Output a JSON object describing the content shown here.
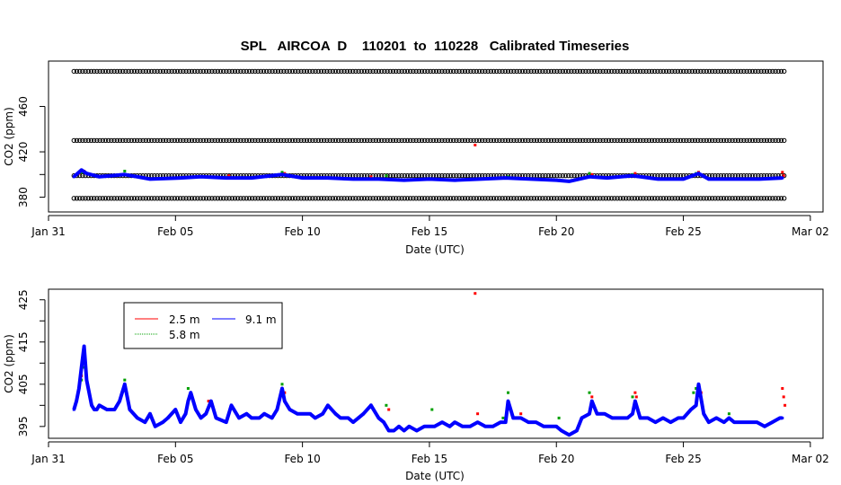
{
  "chart_data": [
    {
      "type": "scatter",
      "title": "SPL   AIRCOA  D    110201  to  110228   Calibrated Timeseries",
      "xlabel": "Date (UTC)",
      "ylabel": "CO2 (ppm)",
      "xlim": [
        0,
        30.5
      ],
      "ylim": [
        367,
        500
      ],
      "x_ticks": [
        {
          "x": 0,
          "label": "Jan 31"
        },
        {
          "x": 5,
          "label": "Feb 05"
        },
        {
          "x": 10,
          "label": "Feb 10"
        },
        {
          "x": 15,
          "label": "Feb 15"
        },
        {
          "x": 20,
          "label": "Feb 20"
        },
        {
          "x": 25,
          "label": "Feb 25"
        },
        {
          "x": 30,
          "label": "Mar 02"
        }
      ],
      "y_ticks": [
        380,
        400,
        420,
        460
      ],
      "y_tick_labels": [
        "380",
        "420",
        "460"
      ],
      "reference_levels": [
        {
          "name": "standard-1",
          "value": 379,
          "color": "#000000"
        },
        {
          "name": "standard-2",
          "value": 399,
          "color": "#000000"
        },
        {
          "name": "standard-3",
          "value": 430,
          "color": "#000000"
        },
        {
          "name": "standard-4",
          "value": 491,
          "color": "#000000"
        }
      ],
      "x_range_days": [
        1,
        29
      ],
      "series": [
        {
          "name": "2.5 m",
          "color": "#ff0000",
          "x": [
            1.2,
            1.4,
            3.0,
            7.1,
            9.3,
            12.7,
            16.8,
            18.6,
            21.4,
            23.1,
            25.6,
            28.9,
            28.95
          ],
          "y": [
            401,
            403,
            400,
            399,
            401,
            398,
            426,
            397,
            400,
            401,
            402,
            402,
            399
          ]
        },
        {
          "name": "5.8 m",
          "color": "#00a000",
          "x": [
            1.3,
            3.0,
            9.2,
            13.3,
            18.1,
            21.3,
            23.0,
            25.5
          ],
          "y": [
            402,
            403,
            402,
            399,
            398,
            401,
            400,
            401
          ]
        },
        {
          "name": "9.1 m",
          "color": "#0000ff",
          "x": [
            1.0,
            1.3,
            1.5,
            2.0,
            3.0,
            4.0,
            5.2,
            6.0,
            7.0,
            8.0,
            9.2,
            10.0,
            11.0,
            12.0,
            13.0,
            14.0,
            15.0,
            16.0,
            17.0,
            18.0,
            19.0,
            20.0,
            20.5,
            21.3,
            22.0,
            23.0,
            24.0,
            25.0,
            25.6,
            26.0,
            27.0,
            28.0,
            28.9
          ],
          "y": [
            398,
            404,
            401,
            398,
            400,
            396,
            397,
            398,
            397,
            397,
            400,
            397,
            397,
            396,
            396,
            395,
            396,
            395,
            396,
            397,
            396,
            395,
            394,
            398,
            397,
            399,
            396,
            396,
            401,
            396,
            396,
            396,
            397
          ]
        }
      ]
    },
    {
      "type": "scatter",
      "title": "",
      "xlabel": "Date (UTC)",
      "ylabel": "CO2 (ppm)",
      "xlim": [
        0,
        30.5
      ],
      "ylim": [
        392.2,
        427.5
      ],
      "x_ticks": [
        {
          "x": 0,
          "label": "Jan 31"
        },
        {
          "x": 5,
          "label": "Feb 05"
        },
        {
          "x": 10,
          "label": "Feb 10"
        },
        {
          "x": 15,
          "label": "Feb 15"
        },
        {
          "x": 20,
          "label": "Feb 20"
        },
        {
          "x": 25,
          "label": "Feb 25"
        },
        {
          "x": 30,
          "label": "Mar 02"
        }
      ],
      "y_ticks": [
        395,
        400,
        405,
        410,
        415,
        420,
        425
      ],
      "y_tick_labels": [
        "395",
        "405",
        "415",
        "425"
      ],
      "legend": {
        "placement": "top-left",
        "entries": [
          "2.5 m",
          "5.8 m",
          "9.1 m"
        ]
      },
      "series": [
        {
          "name": "2.5 m",
          "color": "#ff0000",
          "x": [
            1.2,
            1.3,
            1.35,
            3.0,
            6.3,
            9.3,
            12.7,
            13.4,
            16.8,
            16.9,
            18.6,
            21.4,
            23.1,
            23.15,
            25.6,
            25.7,
            28.9,
            28.95,
            29.0
          ],
          "y": [
            404,
            407,
            410,
            405,
            401,
            403,
            400,
            399,
            426.5,
            398,
            398,
            402,
            403,
            402,
            404,
            403,
            404,
            402,
            400
          ]
        },
        {
          "name": "5.8 m",
          "color": "#00a000",
          "x": [
            1.3,
            1.4,
            3.0,
            5.5,
            9.2,
            13.3,
            15.1,
            17.9,
            18.1,
            20.1,
            21.3,
            23.0,
            25.4,
            25.5,
            26.8
          ],
          "y": [
            406,
            409,
            406,
            404,
            405,
            400,
            399,
            397,
            403,
            397,
            403,
            402,
            403,
            404,
            398
          ]
        },
        {
          "name": "9.1 m",
          "color": "#0000ff",
          "x": [
            1.0,
            1.1,
            1.2,
            1.3,
            1.4,
            1.5,
            1.6,
            1.7,
            1.8,
            1.9,
            2.0,
            2.3,
            2.6,
            2.8,
            3.0,
            3.1,
            3.2,
            3.5,
            3.8,
            4.0,
            4.2,
            4.5,
            4.7,
            5.0,
            5.2,
            5.4,
            5.5,
            5.6,
            5.8,
            6.0,
            6.2,
            6.4,
            6.6,
            7.0,
            7.2,
            7.5,
            7.8,
            8.0,
            8.3,
            8.5,
            8.8,
            9.0,
            9.2,
            9.3,
            9.5,
            9.8,
            10.0,
            10.3,
            10.5,
            10.8,
            11.0,
            11.3,
            11.5,
            11.8,
            12.0,
            12.2,
            12.4,
            12.7,
            13.0,
            13.2,
            13.4,
            13.6,
            13.8,
            14.0,
            14.2,
            14.5,
            14.8,
            15.0,
            15.2,
            15.5,
            15.8,
            16.0,
            16.3,
            16.6,
            16.9,
            17.2,
            17.5,
            17.8,
            18.0,
            18.1,
            18.3,
            18.6,
            18.9,
            19.2,
            19.5,
            19.8,
            20.0,
            20.2,
            20.5,
            20.8,
            21.0,
            21.3,
            21.4,
            21.6,
            21.9,
            22.2,
            22.5,
            22.8,
            23.0,
            23.1,
            23.3,
            23.6,
            23.9,
            24.2,
            24.5,
            24.8,
            25.0,
            25.3,
            25.5,
            25.6,
            25.8,
            26.0,
            26.3,
            26.6,
            26.8,
            27.0,
            27.3,
            27.6,
            27.9,
            28.2,
            28.5,
            28.8,
            28.9
          ],
          "y": [
            399,
            401,
            404,
            409,
            414,
            406,
            403,
            400,
            399,
            399,
            400,
            399,
            399,
            401,
            405,
            402,
            399,
            397,
            396,
            398,
            395,
            396,
            397,
            399,
            396,
            398,
            401,
            403,
            399,
            397,
            398,
            401,
            397,
            396,
            400,
            397,
            398,
            397,
            397,
            398,
            397,
            399,
            404,
            401,
            399,
            398,
            398,
            398,
            397,
            398,
            400,
            398,
            397,
            397,
            396,
            397,
            398,
            400,
            397,
            396,
            394,
            394,
            395,
            394,
            395,
            394,
            395,
            395,
            395,
            396,
            395,
            396,
            395,
            395,
            396,
            395,
            395,
            396,
            396,
            401,
            397,
            397,
            396,
            396,
            395,
            395,
            395,
            394,
            393,
            394,
            397,
            398,
            401,
            398,
            398,
            397,
            397,
            397,
            398,
            401,
            397,
            397,
            396,
            397,
            396,
            397,
            397,
            399,
            400,
            405,
            398,
            396,
            397,
            396,
            397,
            396,
            396,
            396,
            396,
            395,
            396,
            397,
            397
          ]
        }
      ]
    }
  ]
}
